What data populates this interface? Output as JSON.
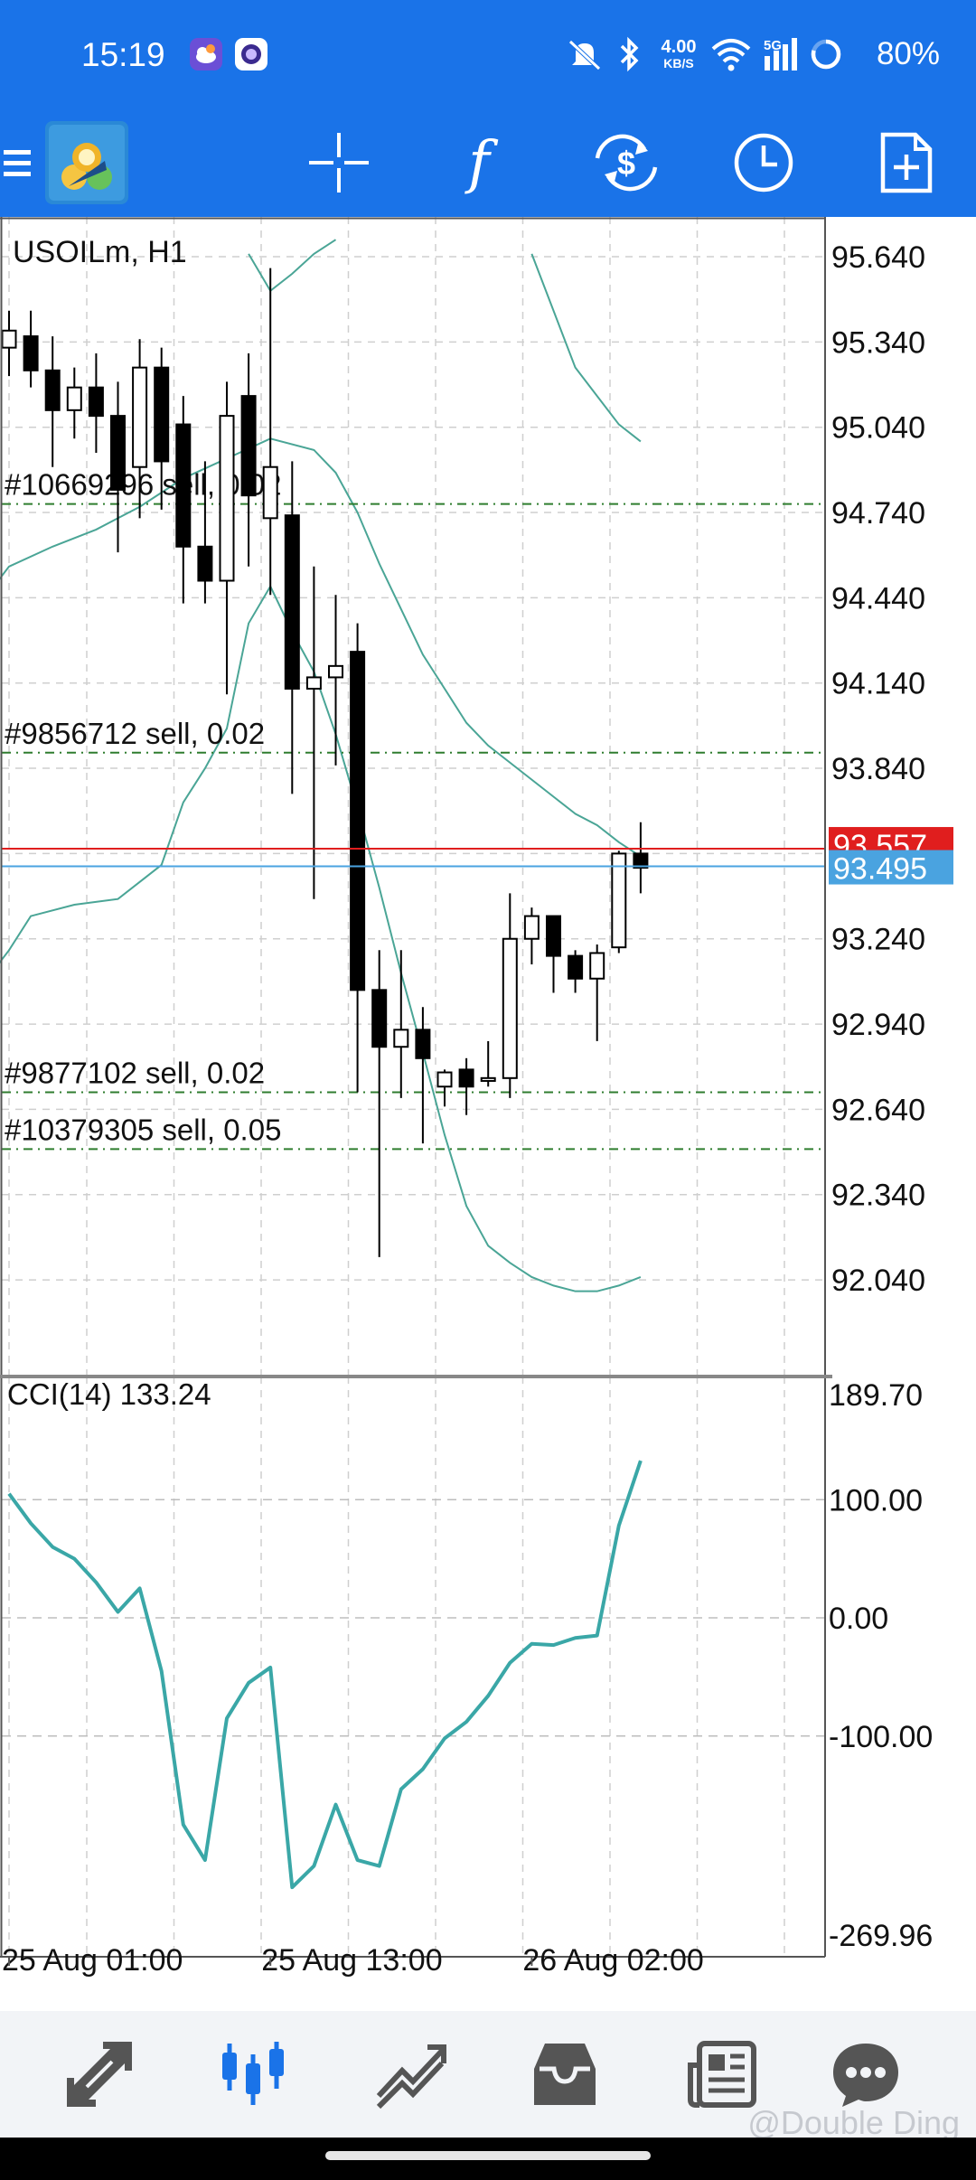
{
  "status_bar": {
    "time": "15:19",
    "net_speed_value": "4.00",
    "net_speed_unit": "KB/S",
    "network_type": "5G",
    "battery": "80%",
    "icons": [
      "weather-app-icon",
      "app-notification-icon",
      "mute-icon",
      "bluetooth-icon",
      "wifi-icon",
      "signal-icon",
      "battery-icon"
    ]
  },
  "toolbar": {
    "icons": [
      "menu-icon",
      "metatrader-logo",
      "crosshair-icon",
      "indicators-icon",
      "trade-icon",
      "timeframe-icon",
      "new-order-icon"
    ],
    "indicators_glyph": "f"
  },
  "colors": {
    "header": "#1a73e8",
    "bull_candle": "#ffffff",
    "bear_candle": "#000000",
    "bands": "#4aa596",
    "cci_line": "#3aa7a7",
    "ask_line": "#e01e1e",
    "bid_line": "#4aa3e0",
    "order_line": "#2f7d2f"
  },
  "chart_data": [
    {
      "type": "candlestick",
      "symbol_label": "USOILm, H1",
      "y_ticks": [
        "95.640",
        "95.340",
        "95.040",
        "94.740",
        "94.440",
        "94.140",
        "93.840",
        "93.540",
        "93.240",
        "92.940",
        "92.640",
        "92.340",
        "92.040"
      ],
      "ylim": [
        91.7,
        95.78
      ],
      "x_ticks": [
        {
          "label": "25 Aug 01:00",
          "index": 0
        },
        {
          "label": "25 Aug 13:00",
          "index": 12
        },
        {
          "label": "26 Aug 02:00",
          "index": 24
        }
      ],
      "candles": [
        {
          "o": 95.32,
          "h": 95.45,
          "l": 95.22,
          "c": 95.38
        },
        {
          "o": 95.36,
          "h": 95.45,
          "l": 95.18,
          "c": 95.24
        },
        {
          "o": 95.24,
          "h": 95.36,
          "l": 94.9,
          "c": 95.1
        },
        {
          "o": 95.1,
          "h": 95.25,
          "l": 95.0,
          "c": 95.18
        },
        {
          "o": 95.18,
          "h": 95.3,
          "l": 94.95,
          "c": 95.08
        },
        {
          "o": 95.08,
          "h": 95.2,
          "l": 94.6,
          "c": 94.82
        },
        {
          "o": 94.9,
          "h": 95.35,
          "l": 94.72,
          "c": 95.25
        },
        {
          "o": 95.25,
          "h": 95.32,
          "l": 94.75,
          "c": 94.92
        },
        {
          "o": 95.05,
          "h": 95.15,
          "l": 94.42,
          "c": 94.62
        },
        {
          "o": 94.62,
          "h": 94.92,
          "l": 94.42,
          "c": 94.5
        },
        {
          "o": 94.5,
          "h": 95.2,
          "l": 94.1,
          "c": 95.08
        },
        {
          "o": 95.15,
          "h": 95.3,
          "l": 94.55,
          "c": 94.8
        },
        {
          "o": 94.72,
          "h": 95.6,
          "l": 94.45,
          "c": 94.9
        },
        {
          "o": 94.73,
          "h": 94.92,
          "l": 93.75,
          "c": 94.12
        },
        {
          "o": 94.12,
          "h": 94.55,
          "l": 93.38,
          "c": 94.16
        },
        {
          "o": 94.16,
          "h": 94.45,
          "l": 93.85,
          "c": 94.2
        },
        {
          "o": 94.25,
          "h": 94.35,
          "l": 92.7,
          "c": 93.06
        },
        {
          "o": 93.06,
          "h": 93.2,
          "l": 92.12,
          "c": 92.86
        },
        {
          "o": 92.86,
          "h": 93.2,
          "l": 92.68,
          "c": 92.92
        },
        {
          "o": 92.92,
          "h": 93.0,
          "l": 92.52,
          "c": 92.82
        },
        {
          "o": 92.72,
          "h": 92.78,
          "l": 92.65,
          "c": 92.77
        },
        {
          "o": 92.78,
          "h": 92.82,
          "l": 92.62,
          "c": 92.72
        },
        {
          "o": 92.74,
          "h": 92.88,
          "l": 92.72,
          "c": 92.75
        },
        {
          "o": 92.75,
          "h": 93.4,
          "l": 92.68,
          "c": 93.24
        },
        {
          "o": 93.24,
          "h": 93.35,
          "l": 93.15,
          "c": 93.32
        },
        {
          "o": 93.32,
          "h": 93.32,
          "l": 93.05,
          "c": 93.18
        },
        {
          "o": 93.18,
          "h": 93.2,
          "l": 93.05,
          "c": 93.1
        },
        {
          "o": 93.1,
          "h": 93.22,
          "l": 92.88,
          "c": 93.19
        },
        {
          "o": 93.21,
          "h": 93.55,
          "l": 93.19,
          "c": 93.54
        },
        {
          "o": 93.54,
          "h": 93.65,
          "l": 93.4,
          "c": 93.49
        }
      ],
      "bands_upper": [
        {
          "i": 11,
          "v": 95.65
        },
        {
          "i": 12,
          "v": 95.52
        },
        {
          "i": 13,
          "v": 95.58
        },
        {
          "i": 14,
          "v": 95.65
        },
        {
          "i": 15,
          "v": 95.7
        }
      ],
      "bands_upper_right": [
        {
          "i": 24,
          "v": 95.65
        },
        {
          "i": 25,
          "v": 95.45
        },
        {
          "i": 26,
          "v": 95.25
        },
        {
          "i": 27,
          "v": 95.15
        },
        {
          "i": 28,
          "v": 95.05
        },
        {
          "i": 29,
          "v": 94.99
        }
      ],
      "bands_mid": [
        {
          "i": -1,
          "v": 94.45
        },
        {
          "i": 0,
          "v": 94.55
        },
        {
          "i": 2,
          "v": 94.62
        },
        {
          "i": 4,
          "v": 94.68
        },
        {
          "i": 6,
          "v": 94.76
        },
        {
          "i": 8,
          "v": 94.86
        },
        {
          "i": 10,
          "v": 94.93
        },
        {
          "i": 12,
          "v": 95.0
        },
        {
          "i": 14,
          "v": 94.96
        },
        {
          "i": 15,
          "v": 94.88
        },
        {
          "i": 16,
          "v": 94.74
        },
        {
          "i": 17,
          "v": 94.56
        },
        {
          "i": 18,
          "v": 94.4
        },
        {
          "i": 19,
          "v": 94.24
        },
        {
          "i": 20,
          "v": 94.12
        },
        {
          "i": 21,
          "v": 94.0
        },
        {
          "i": 22,
          "v": 93.92
        },
        {
          "i": 23,
          "v": 93.86
        },
        {
          "i": 24,
          "v": 93.8
        },
        {
          "i": 25,
          "v": 93.74
        },
        {
          "i": 26,
          "v": 93.68
        },
        {
          "i": 27,
          "v": 93.64
        },
        {
          "i": 28,
          "v": 93.58
        },
        {
          "i": 29,
          "v": 93.53
        }
      ],
      "bands_lower": [
        {
          "i": -1,
          "v": 93.1
        },
        {
          "i": 0,
          "v": 93.2
        },
        {
          "i": 1,
          "v": 93.32
        },
        {
          "i": 3,
          "v": 93.36
        },
        {
          "i": 5,
          "v": 93.38
        },
        {
          "i": 7,
          "v": 93.5
        },
        {
          "i": 8,
          "v": 93.72
        },
        {
          "i": 9,
          "v": 93.84
        },
        {
          "i": 10,
          "v": 93.98
        },
        {
          "i": 11,
          "v": 94.35
        },
        {
          "i": 12,
          "v": 94.48
        },
        {
          "i": 13,
          "v": 94.32
        },
        {
          "i": 14,
          "v": 94.18
        },
        {
          "i": 15,
          "v": 93.96
        },
        {
          "i": 16,
          "v": 93.7
        },
        {
          "i": 17,
          "v": 93.42
        },
        {
          "i": 18,
          "v": 93.12
        },
        {
          "i": 19,
          "v": 92.84
        },
        {
          "i": 20,
          "v": 92.55
        },
        {
          "i": 21,
          "v": 92.3
        },
        {
          "i": 22,
          "v": 92.16
        },
        {
          "i": 23,
          "v": 92.1
        },
        {
          "i": 24,
          "v": 92.05
        },
        {
          "i": 25,
          "v": 92.02
        },
        {
          "i": 26,
          "v": 92.0
        },
        {
          "i": 27,
          "v": 92.0
        },
        {
          "i": 28,
          "v": 92.02
        },
        {
          "i": 29,
          "v": 92.05
        }
      ],
      "ask": {
        "label": "93.557",
        "value": 93.557
      },
      "bid": {
        "label": "93.495",
        "value": 93.495
      },
      "orders": [
        {
          "label": "#10669296 sell, 0.02",
          "value": 94.77
        },
        {
          "label": "#9856712 sell, 0.02",
          "value": 93.895
        },
        {
          "label": "#9877102 sell, 0.02",
          "value": 92.7
        },
        {
          "label": "#10379305 sell, 0.05",
          "value": 92.5
        }
      ],
      "grid": true
    },
    {
      "type": "line",
      "title": "CCI(14) 133.24",
      "y_ticks": [
        "189.70",
        "100.00",
        "0.00",
        "-100.00",
        "-269.96"
      ],
      "ylim": [
        -269.96,
        189.7
      ],
      "series": [
        {
          "values": [
            {
              "i": 0,
              "v": 105
            },
            {
              "i": 1,
              "v": 80
            },
            {
              "i": 2,
              "v": 60
            },
            {
              "i": 3,
              "v": 50
            },
            {
              "i": 4,
              "v": 30
            },
            {
              "i": 5,
              "v": 5
            },
            {
              "i": 6,
              "v": 25
            },
            {
              "i": 7,
              "v": -45
            },
            {
              "i": 8,
              "v": -175
            },
            {
              "i": 9,
              "v": -205
            },
            {
              "i": 10,
              "v": -85
            },
            {
              "i": 11,
              "v": -55
            },
            {
              "i": 12,
              "v": -42
            },
            {
              "i": 13,
              "v": -228
            },
            {
              "i": 14,
              "v": -210
            },
            {
              "i": 15,
              "v": -158
            },
            {
              "i": 16,
              "v": -205
            },
            {
              "i": 17,
              "v": -210
            },
            {
              "i": 18,
              "v": -145
            },
            {
              "i": 19,
              "v": -128
            },
            {
              "i": 20,
              "v": -102
            },
            {
              "i": 21,
              "v": -88
            },
            {
              "i": 22,
              "v": -66
            },
            {
              "i": 23,
              "v": -38
            },
            {
              "i": 24,
              "v": -22
            },
            {
              "i": 25,
              "v": -23
            },
            {
              "i": 26,
              "v": -17
            },
            {
              "i": 27,
              "v": -15
            },
            {
              "i": 28,
              "v": 78
            },
            {
              "i": 29,
              "v": 133
            }
          ]
        }
      ],
      "grid": true
    }
  ],
  "bottom_nav": {
    "items": [
      "quotes-icon",
      "chart-icon",
      "trade-icon",
      "history-icon",
      "news-icon",
      "messages-icon"
    ],
    "active": "chart-icon"
  },
  "watermark": "@Double Ding"
}
